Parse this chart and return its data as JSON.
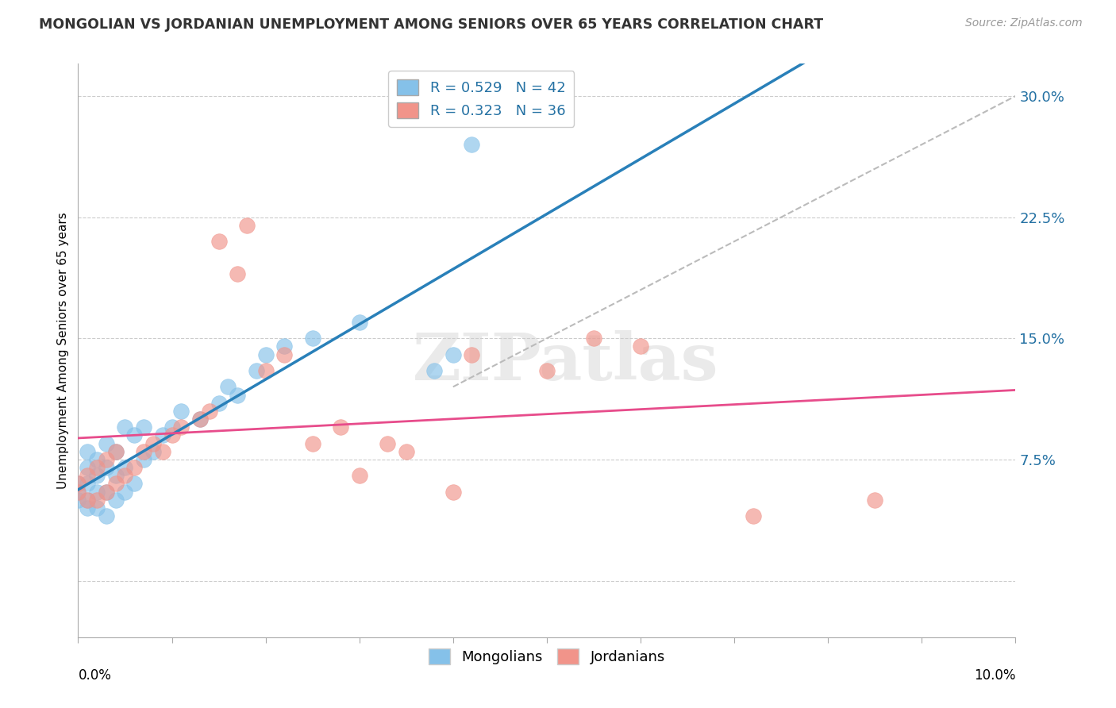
{
  "title": "MONGOLIAN VS JORDANIAN UNEMPLOYMENT AMONG SENIORS OVER 65 YEARS CORRELATION CHART",
  "source": "Source: ZipAtlas.com",
  "ylabel": "Unemployment Among Seniors over 65 years",
  "xlim": [
    0.0,
    0.1
  ],
  "ylim": [
    -0.035,
    0.32
  ],
  "yticks": [
    0.0,
    0.075,
    0.15,
    0.225,
    0.3
  ],
  "ytick_labels": [
    "",
    "7.5%",
    "15.0%",
    "22.5%",
    "30.0%"
  ],
  "mongolian_R": 0.529,
  "mongolian_N": 42,
  "jordanian_R": 0.323,
  "jordanian_N": 36,
  "mongolian_color": "#85c1e9",
  "jordanian_color": "#f1948a",
  "mongolian_line_color": "#2980b9",
  "jordanian_line_color": "#e74c8b",
  "dashed_line_color": "#bbbbbb",
  "watermark": "ZIPatlas",
  "mongolian_x": [
    0.0,
    0.0,
    0.0,
    0.001,
    0.001,
    0.001,
    0.001,
    0.001,
    0.002,
    0.002,
    0.002,
    0.002,
    0.003,
    0.003,
    0.003,
    0.003,
    0.004,
    0.004,
    0.004,
    0.005,
    0.005,
    0.005,
    0.006,
    0.006,
    0.007,
    0.007,
    0.008,
    0.009,
    0.01,
    0.011,
    0.013,
    0.015,
    0.016,
    0.017,
    0.019,
    0.02,
    0.022,
    0.025,
    0.03,
    0.038,
    0.04,
    0.042
  ],
  "mongolian_y": [
    0.05,
    0.055,
    0.06,
    0.045,
    0.05,
    0.06,
    0.07,
    0.08,
    0.045,
    0.055,
    0.065,
    0.075,
    0.04,
    0.055,
    0.07,
    0.085,
    0.05,
    0.065,
    0.08,
    0.055,
    0.07,
    0.095,
    0.06,
    0.09,
    0.075,
    0.095,
    0.08,
    0.09,
    0.095,
    0.105,
    0.1,
    0.11,
    0.12,
    0.115,
    0.13,
    0.14,
    0.145,
    0.15,
    0.16,
    0.13,
    0.14,
    0.27
  ],
  "jordanian_x": [
    0.0,
    0.0,
    0.001,
    0.001,
    0.002,
    0.002,
    0.003,
    0.003,
    0.004,
    0.004,
    0.005,
    0.006,
    0.007,
    0.008,
    0.009,
    0.01,
    0.011,
    0.013,
    0.014,
    0.015,
    0.017,
    0.018,
    0.02,
    0.022,
    0.025,
    0.028,
    0.03,
    0.033,
    0.035,
    0.04,
    0.042,
    0.05,
    0.055,
    0.06,
    0.072,
    0.085
  ],
  "jordanian_y": [
    0.055,
    0.06,
    0.05,
    0.065,
    0.05,
    0.07,
    0.055,
    0.075,
    0.06,
    0.08,
    0.065,
    0.07,
    0.08,
    0.085,
    0.08,
    0.09,
    0.095,
    0.1,
    0.105,
    0.21,
    0.19,
    0.22,
    0.13,
    0.14,
    0.085,
    0.095,
    0.065,
    0.085,
    0.08,
    0.055,
    0.14,
    0.13,
    0.15,
    0.145,
    0.04,
    0.05
  ]
}
